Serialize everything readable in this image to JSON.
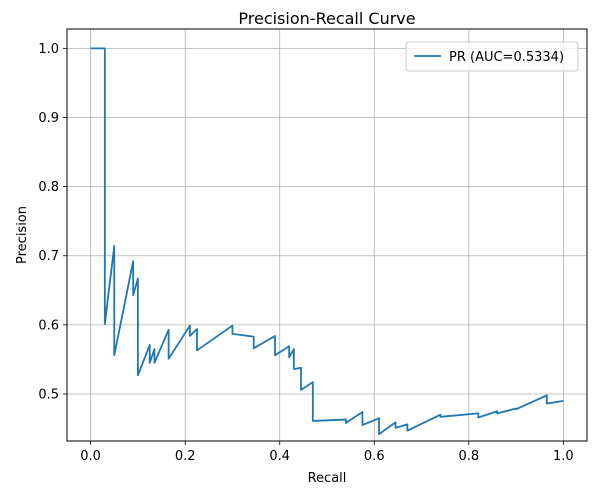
{
  "chart_data": {
    "type": "line",
    "title": "Precision-Recall Curve",
    "xlabel": "Recall",
    "ylabel": "Precision",
    "xlim": [
      -0.05,
      1.05
    ],
    "ylim": [
      0.432,
      1.028
    ],
    "xticks": [
      0.0,
      0.2,
      0.4,
      0.6,
      0.8,
      1.0
    ],
    "xtick_labels": [
      "0.0",
      "0.2",
      "0.4",
      "0.6",
      "0.8",
      "1.0"
    ],
    "yticks": [
      0.5,
      0.6,
      0.7,
      0.8,
      0.9,
      1.0
    ],
    "ytick_labels": [
      "0.5",
      "0.6",
      "0.7",
      "0.8",
      "0.9",
      "1.0"
    ],
    "grid": true,
    "legend_position": "top-right",
    "series": [
      {
        "name": "PR (AUC=0.5334)",
        "color": "#1f77b4",
        "x": [
          0.0,
          0.03,
          0.03,
          0.05,
          0.05,
          0.09,
          0.09,
          0.1,
          0.1,
          0.125,
          0.125,
          0.135,
          0.135,
          0.165,
          0.165,
          0.21,
          0.21,
          0.225,
          0.225,
          0.3,
          0.3,
          0.345,
          0.345,
          0.39,
          0.39,
          0.42,
          0.42,
          0.43,
          0.43,
          0.445,
          0.445,
          0.47,
          0.47,
          0.54,
          0.54,
          0.575,
          0.575,
          0.61,
          0.61,
          0.645,
          0.645,
          0.67,
          0.67,
          0.74,
          0.74,
          0.82,
          0.82,
          0.86,
          0.86,
          0.9,
          0.9,
          0.965,
          0.965,
          1.0
        ],
        "y": [
          1.0,
          1.0,
          0.601,
          0.714,
          0.556,
          0.692,
          0.643,
          0.667,
          0.527,
          0.571,
          0.545,
          0.565,
          0.545,
          0.593,
          0.551,
          0.599,
          0.584,
          0.594,
          0.563,
          0.599,
          0.587,
          0.583,
          0.566,
          0.584,
          0.556,
          0.569,
          0.553,
          0.565,
          0.536,
          0.538,
          0.506,
          0.517,
          0.461,
          0.463,
          0.458,
          0.474,
          0.455,
          0.465,
          0.442,
          0.459,
          0.451,
          0.456,
          0.447,
          0.47,
          0.467,
          0.472,
          0.466,
          0.475,
          0.472,
          0.479,
          0.478,
          0.498,
          0.486,
          0.49
        ]
      }
    ]
  }
}
